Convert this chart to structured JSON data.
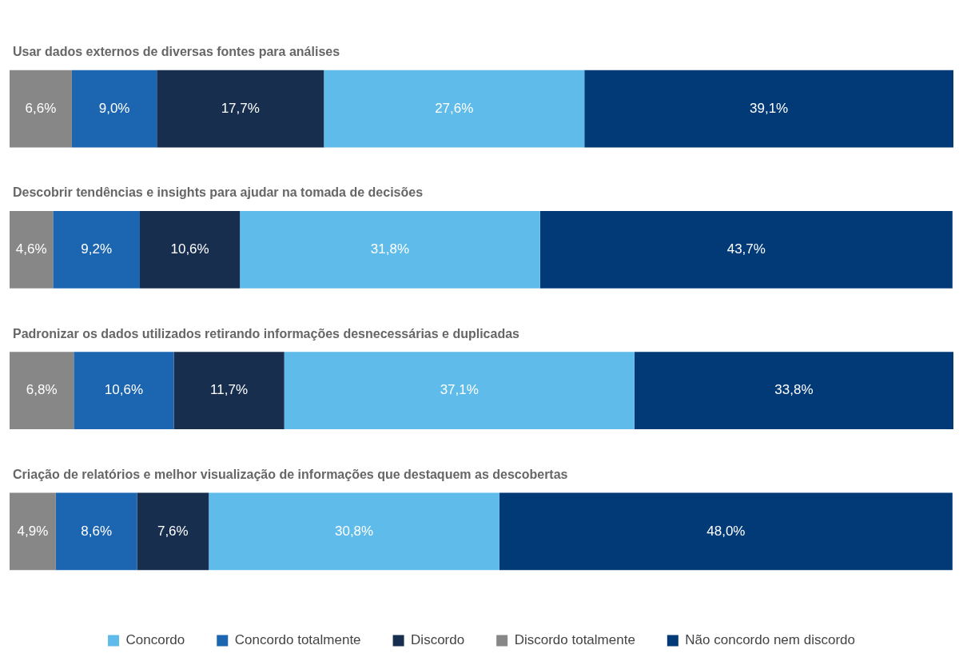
{
  "chart_data": {
    "type": "bar",
    "orientation": "horizontal",
    "stacked": true,
    "legend": "bottom",
    "tick_labels": false,
    "categories": [
      "Usar dados externos de diversas fontes para análises",
      "Descobrir tendências e insights para ajudar na tomada de decisões",
      "Padronizar os dados utilizados retirando informações desnecessárias e duplicadas",
      "Criação de relatórios e melhor visualização de informações que destaquem as descobertas"
    ],
    "series": [
      {
        "name": "Discordo totalmente",
        "color": "#878787",
        "values": [
          6.6,
          4.6,
          6.8,
          4.9
        ],
        "value_labels": [
          "6,6%",
          "4,6%",
          "6,8%",
          "4,9%"
        ]
      },
      {
        "name": "Concordo totalmente",
        "color": "#1c65b0",
        "values": [
          9.0,
          9.2,
          10.6,
          8.6
        ],
        "value_labels": [
          "9,0%",
          "9,2%",
          "10,6%",
          "8,6%"
        ]
      },
      {
        "name": "Discordo",
        "color": "#172e4e",
        "values": [
          17.7,
          10.6,
          11.7,
          7.6
        ],
        "value_labels": [
          "17,7%",
          "10,6%",
          "11,7%",
          "7,6%"
        ]
      },
      {
        "name": "Concordo",
        "color": "#5fbbea",
        "values": [
          27.6,
          31.8,
          37.1,
          30.8
        ],
        "value_labels": [
          "27,6%",
          "31,8%",
          "37,1%",
          "30,8%"
        ]
      },
      {
        "name": "Não concordo nem discordo",
        "color": "#023a78",
        "values": [
          39.1,
          43.7,
          33.8,
          48.0
        ],
        "value_labels": [
          "39,1%",
          "43,7%",
          "33,8%",
          "48,0%"
        ]
      }
    ]
  }
}
